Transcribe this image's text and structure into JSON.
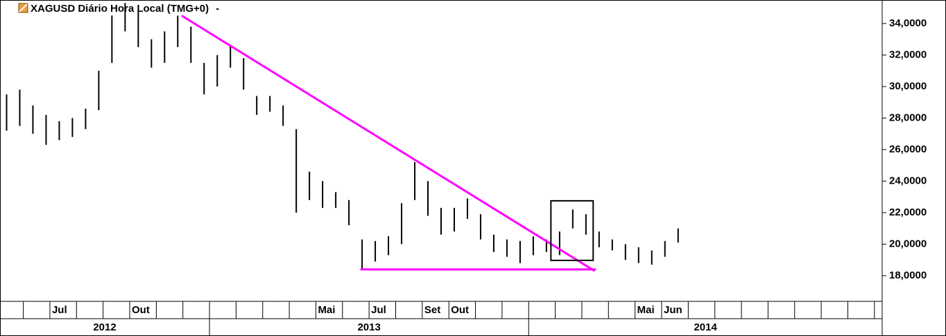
{
  "chart_data": {
    "type": "ohlc",
    "title": "XAGUSD Diário Hora Local (TMG+0)",
    "title_suffix": "-",
    "series": [
      {
        "name": "XAGUSD",
        "color": "#000000",
        "low": [
          27.2,
          27.5,
          27.0,
          26.3,
          26.6,
          26.8,
          27.3,
          28.5,
          31.5,
          33.5,
          32.5,
          31.2,
          31.5,
          32.5,
          31.5,
          29.5,
          30.0,
          31.2,
          29.8,
          28.2,
          28.4,
          27.5,
          22.0,
          22.8,
          22.3,
          22.3,
          21.2,
          18.4,
          18.9,
          19.3,
          20.0,
          22.8,
          21.8,
          20.6,
          20.8,
          21.6,
          20.3,
          19.5,
          19.2,
          18.8,
          19.3,
          19.5,
          19.3,
          21.0,
          20.6,
          19.8,
          19.6,
          19.0,
          18.8,
          18.7,
          19.2,
          20.1
        ],
        "high": [
          29.5,
          29.8,
          28.8,
          28.2,
          27.8,
          28.0,
          28.6,
          31.0,
          34.5,
          35.3,
          34.8,
          33.0,
          33.5,
          34.5,
          33.8,
          31.5,
          32.0,
          32.6,
          31.8,
          29.4,
          29.4,
          28.8,
          27.3,
          24.6,
          24.0,
          23.3,
          22.8,
          20.3,
          20.2,
          20.5,
          22.6,
          25.2,
          24.0,
          22.3,
          22.3,
          22.9,
          21.9,
          20.6,
          20.3,
          20.2,
          20.5,
          20.3,
          20.8,
          22.2,
          21.9,
          20.8,
          20.3,
          20.0,
          19.8,
          19.6,
          20.2,
          21.0
        ]
      }
    ],
    "xlim": [
      0,
      67
    ],
    "xticks": [
      {
        "value": 3.79,
        "label": "Jul"
      },
      {
        "value": 9.85,
        "label": "Out"
      },
      {
        "value": 23.99,
        "label": "Mai"
      },
      {
        "value": 28.03,
        "label": "Jul"
      },
      {
        "value": 32.07,
        "label": "Set"
      },
      {
        "value": 34.09,
        "label": "Out"
      },
      {
        "value": 48.23,
        "label": "Mai"
      },
      {
        "value": 50.25,
        "label": "Jun"
      }
    ],
    "xticks_minor": [
      1.77,
      5.81,
      7.83,
      11.87,
      13.89,
      15.91,
      17.93,
      19.95,
      21.97,
      26.01,
      30.05,
      36.11,
      38.13,
      40.15,
      42.17,
      44.19,
      46.21,
      52.27,
      54.29,
      56.31,
      58.33,
      60.35,
      62.37,
      64.39,
      66.41
    ],
    "years": [
      "2012",
      "2013",
      "2014"
    ],
    "year_bounds": [
      15.91,
      40.15
    ],
    "ylim": [
      16.37,
      35.49
    ],
    "yticks": [
      {
        "value": 18,
        "label": "18,0000"
      },
      {
        "value": 20,
        "label": "20,0000"
      },
      {
        "value": 22,
        "label": "22,0000"
      },
      {
        "value": 24,
        "label": "24,0000"
      },
      {
        "value": 26,
        "label": "26,0000"
      },
      {
        "value": 28,
        "label": "28,0000"
      },
      {
        "value": 30,
        "label": "30,0000"
      },
      {
        "value": 32,
        "label": "32,0000"
      },
      {
        "value": 34,
        "label": "34,0000"
      }
    ],
    "trendlines": [
      {
        "color": "#ff00ff",
        "x": [
          13.79,
          45.16
        ],
        "y": [
          34.5,
          18.3
        ]
      },
      {
        "color": "#ff00ff",
        "x": [
          27.37,
          45.26
        ],
        "y": [
          18.4,
          18.4
        ]
      }
    ],
    "box": {
      "color": "#000000",
      "x": [
        41.84,
        45.05
      ],
      "y": [
        22.75,
        18.97
      ]
    }
  }
}
